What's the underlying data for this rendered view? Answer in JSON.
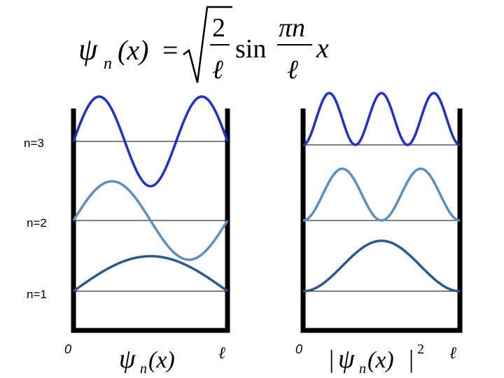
{
  "formula": {
    "lhs_symbol": "ψ",
    "lhs_subscript": "n",
    "lhs_arg": "(x)",
    "equals": "=",
    "frac_num": "2",
    "frac_den": "ℓ",
    "sin": "sin",
    "arg_num": "πn",
    "arg_den": "ℓ",
    "x": "x"
  },
  "levels": [
    {
      "label": "n=3",
      "n": 3
    },
    {
      "label": "n=2",
      "n": 2
    },
    {
      "label": "n=1",
      "n": 1
    }
  ],
  "left_panel": {
    "origin": "0",
    "end": "ℓ",
    "caption_symbol": "ψ",
    "caption_subscript": "n",
    "caption_arg": "(x)"
  },
  "right_panel": {
    "origin": "0",
    "end": "ℓ",
    "caption_bar_left": "|",
    "caption_symbol": "ψ",
    "caption_subscript": "n",
    "caption_arg": "(x)",
    "caption_bar_right": "|",
    "caption_power": "2"
  },
  "colors": {
    "n3": "#1f2fd0",
    "n2": "#5b8fc4",
    "n1": "#2a5a8c",
    "walls": "#000000"
  }
}
